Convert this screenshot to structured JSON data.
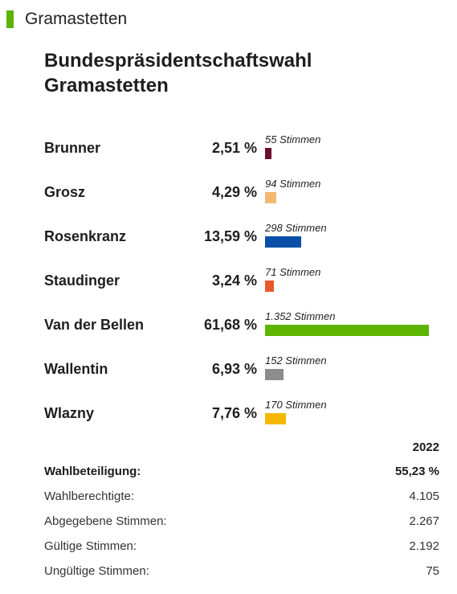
{
  "section": {
    "title": "Gramastetten",
    "marker_color": "#5cb400"
  },
  "chart_data": {
    "type": "bar",
    "title_lines": [
      "Bundespräsidentschaftswahl",
      "Gramastetten"
    ],
    "categories": [
      "Brunner",
      "Grosz",
      "Rosenkranz",
      "Staudinger",
      "Van der Bellen",
      "Wallentin",
      "Wlazny"
    ],
    "series": [
      {
        "values": [
          2.51,
          4.29,
          13.59,
          3.24,
          61.68,
          6.93,
          7.76
        ]
      }
    ],
    "percent_labels": [
      "2,51 %",
      "4,29 %",
      "13,59 %",
      "3,24 %",
      "61,68 %",
      "6,93 %",
      "7,76 %"
    ],
    "votes": [
      55,
      94,
      298,
      71,
      1352,
      152,
      170
    ],
    "vote_labels": [
      "55 Stimmen",
      "94 Stimmen",
      "298 Stimmen",
      "71 Stimmen",
      "1.352 Stimmen",
      "152 Stimmen",
      "170 Stimmen"
    ],
    "colors": [
      "#6b0f2d",
      "#f5b872",
      "#0a4fa8",
      "#e8582a",
      "#5cb400",
      "#8c8c8c",
      "#f5b800"
    ],
    "grid": false,
    "legend": "none"
  },
  "stats": {
    "year": "2022",
    "rows": [
      {
        "label": "Wahlbeteiligung:",
        "value": "55,23 %"
      },
      {
        "label": "Wahlberechtigte:",
        "value": "4.105"
      },
      {
        "label": "Abgegebene Stimmen:",
        "value": "2.267"
      },
      {
        "label": "Gültige Stimmen:",
        "value": "2.192"
      },
      {
        "label": "Ungültige Stimmen:",
        "value": "75"
      }
    ]
  }
}
